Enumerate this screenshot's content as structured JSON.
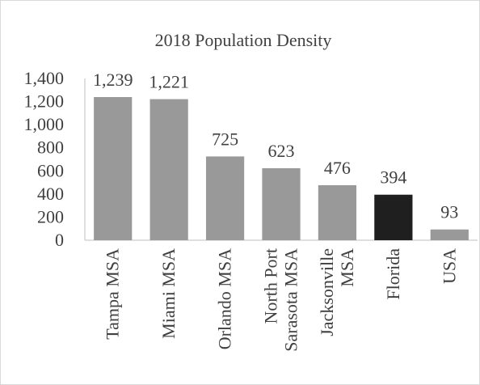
{
  "chart_data": {
    "type": "bar",
    "title": "2018 Population Density",
    "categories": [
      [
        "Tampa MSA"
      ],
      [
        "Miami MSA"
      ],
      [
        "Orlando MSA"
      ],
      [
        "North Port",
        "Sarasota MSA"
      ],
      [
        "Jacksonville",
        "MSA"
      ],
      [
        "Florida"
      ],
      [
        "USA"
      ]
    ],
    "values": [
      1239,
      1221,
      725,
      623,
      476,
      394,
      93
    ],
    "value_labels": [
      "1,239",
      "1,221",
      "725",
      "623",
      "476",
      "394",
      "93"
    ],
    "bar_colors": [
      "#999999",
      "#999999",
      "#999999",
      "#999999",
      "#999999",
      "#1f1f1f",
      "#999999"
    ],
    "ylim": [
      0,
      1400
    ],
    "yticks": [
      0,
      200,
      400,
      600,
      800,
      1000,
      1200,
      1400
    ],
    "ytick_labels": [
      "0",
      "200",
      "400",
      "600",
      "800",
      "1,000",
      "1,200",
      "1,400"
    ],
    "xlabel": "",
    "ylabel": "",
    "grid": false,
    "legend": "none"
  }
}
